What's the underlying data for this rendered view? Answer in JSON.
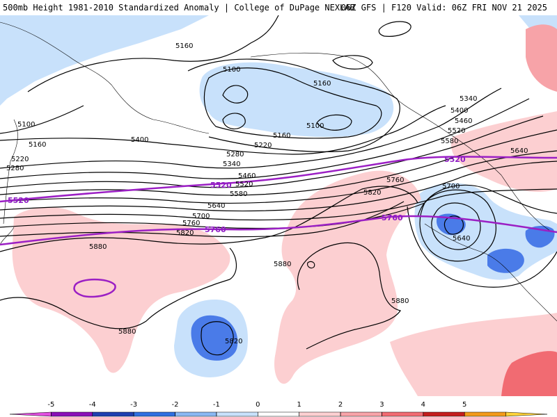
{
  "header": {
    "title_left": "500mb Height 1981-2010 Standardized Anomaly | College of DuPage NEXLAB",
    "title_right": "06Z GFS | F120 Valid: 06Z FRI NOV 21 2025"
  },
  "colors": {
    "neg1": "#c8e1fb",
    "neg2": "#8ab8f2",
    "neg3": "#4a7be8",
    "pos1": "#fccfd1",
    "pos2": "#f7a3a8",
    "pos3": "#f16b72",
    "purple": "#9b1fc4",
    "contour": "#000000"
  },
  "contour_labels": [
    {
      "id": "c5160a",
      "text": "5160"
    },
    {
      "id": "c5100a",
      "text": "5100"
    },
    {
      "id": "c5160b",
      "text": "5160"
    },
    {
      "id": "c5100b",
      "text": "5100"
    },
    {
      "id": "c5160c",
      "text": "5160"
    },
    {
      "id": "c5220a",
      "text": "5220"
    },
    {
      "id": "c5280a",
      "text": "5280"
    },
    {
      "id": "c5340a",
      "text": "5340"
    },
    {
      "id": "c5400a",
      "text": "5400"
    },
    {
      "id": "c5460a",
      "text": "5460"
    },
    {
      "id": "c5520a",
      "text": "5520"
    },
    {
      "id": "c5580a",
      "text": "5580"
    },
    {
      "id": "c5640a",
      "text": "5640"
    },
    {
      "id": "c5700a",
      "text": "5700"
    },
    {
      "id": "c5760a",
      "text": "5760"
    },
    {
      "id": "c5820a",
      "text": "5820"
    },
    {
      "id": "c5880a",
      "text": "5880"
    },
    {
      "id": "c5880b",
      "text": "5880"
    },
    {
      "id": "c5820b",
      "text": "5820"
    },
    {
      "id": "c5880c",
      "text": "5880"
    },
    {
      "id": "c5880d",
      "text": "5880"
    },
    {
      "id": "c5760b",
      "text": "5760"
    },
    {
      "id": "c5820c",
      "text": "5820"
    },
    {
      "id": "c5100w",
      "text": "5100"
    },
    {
      "id": "c5160w",
      "text": "5160"
    },
    {
      "id": "c5220w",
      "text": "5220"
    },
    {
      "id": "c5280w",
      "text": "5280"
    },
    {
      "id": "c5340e",
      "text": "5340"
    },
    {
      "id": "c5400e",
      "text": "5400"
    },
    {
      "id": "c5460e",
      "text": "5460"
    },
    {
      "id": "c5520e",
      "text": "5520"
    },
    {
      "id": "c5580e",
      "text": "5580"
    },
    {
      "id": "c5640e",
      "text": "5640"
    },
    {
      "id": "c5700e",
      "text": "5700"
    },
    {
      "id": "c5640f",
      "text": "5640"
    }
  ],
  "purple_labels": {
    "p5520w": "5520",
    "p5520m": "5520",
    "p5520e": "5520",
    "p5760m": "5760",
    "p5760e": "5760"
  },
  "legend": {
    "ticks": [
      "-5",
      "-4",
      "-3",
      "-2",
      "-1",
      "0",
      "1",
      "2",
      "3",
      "4",
      "5"
    ],
    "bins": [
      "#e14fe0",
      "#8a10b8",
      "#1f3fb0",
      "#2f6fe0",
      "#8ab8f2",
      "#c8e1fb",
      "#ffffff",
      "#fccfd1",
      "#f7a3a8",
      "#f16b72",
      "#c41d1d",
      "#f29a1a",
      "#ffd23a"
    ]
  }
}
